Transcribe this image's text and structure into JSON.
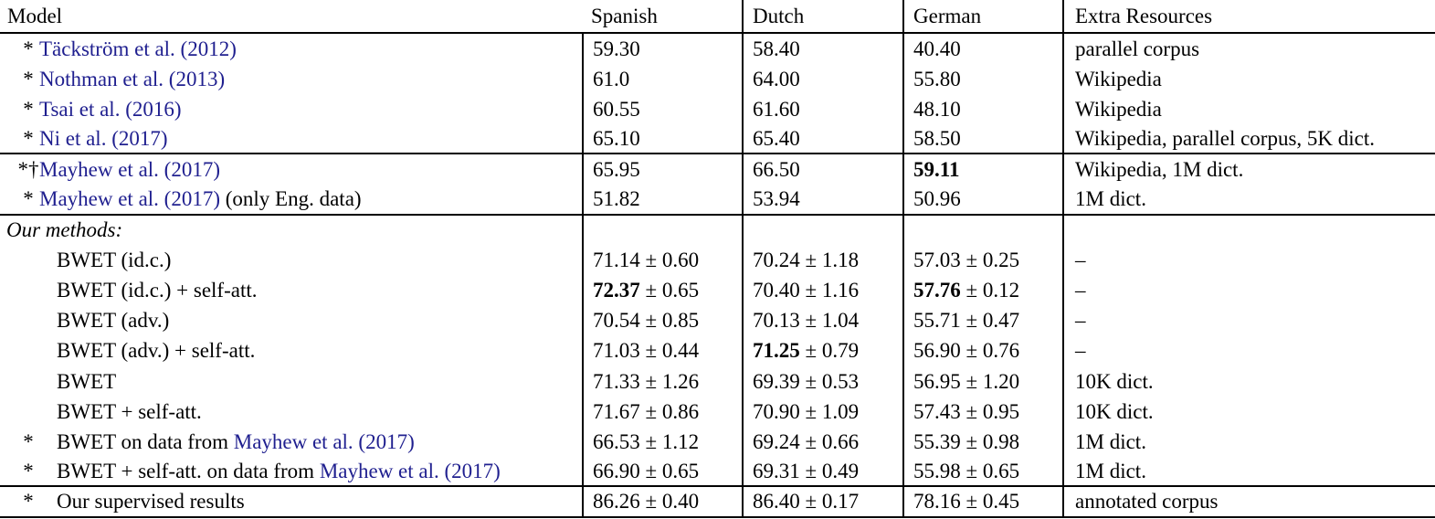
{
  "colors": {
    "citation": "#1f1f8f",
    "text": "#000000",
    "rule": "#000000"
  },
  "header": {
    "model": "Model",
    "spanish": "Spanish",
    "dutch": "Dutch",
    "german": "German",
    "extra": "Extra Resources"
  },
  "table": {
    "rows": [
      {
        "marker": "*",
        "indent": "cite",
        "name": [
          {
            "t": "Täckström et al. (2012)",
            "link": true
          }
        ],
        "scores": [
          {
            "v": "59.30"
          },
          {
            "v": "58.40"
          },
          {
            "v": "40.40"
          }
        ],
        "extra": "parallel corpus",
        "rule_below": false
      },
      {
        "marker": "*",
        "indent": "cite",
        "name": [
          {
            "t": "Nothman et al. (2013)",
            "link": true
          }
        ],
        "scores": [
          {
            "v": "61.0"
          },
          {
            "v": "64.00"
          },
          {
            "v": "55.80"
          }
        ],
        "extra": "Wikipedia",
        "rule_below": false
      },
      {
        "marker": "*",
        "indent": "cite",
        "name": [
          {
            "t": "Tsai et al. (2016)",
            "link": true
          }
        ],
        "scores": [
          {
            "v": "60.55"
          },
          {
            "v": "61.60"
          },
          {
            "v": "48.10"
          }
        ],
        "extra": "Wikipedia",
        "rule_below": false
      },
      {
        "marker": "*",
        "indent": "cite",
        "name": [
          {
            "t": "Ni et al. (2017)",
            "link": true
          }
        ],
        "scores": [
          {
            "v": "65.10"
          },
          {
            "v": "65.40"
          },
          {
            "v": "58.50"
          }
        ],
        "extra": "Wikipedia, parallel corpus, 5K dict.",
        "rule_below": true
      },
      {
        "marker": "*†",
        "indent": "cite",
        "name": [
          {
            "t": "Mayhew et al. (2017)",
            "link": true
          }
        ],
        "scores": [
          {
            "v": "65.95"
          },
          {
            "v": "66.50"
          },
          {
            "v": "59.11",
            "bold": true
          }
        ],
        "extra": "Wikipedia, 1M dict.",
        "rule_below": false
      },
      {
        "marker": "*",
        "indent": "cite",
        "name": [
          {
            "t": "Mayhew et al. (2017)",
            "link": true
          },
          {
            "t": " (only Eng. data)",
            "link": false
          }
        ],
        "scores": [
          {
            "v": "51.82"
          },
          {
            "v": "53.94"
          },
          {
            "v": "50.96"
          }
        ],
        "extra": "1M dict.",
        "rule_below": true
      },
      {
        "label": "Our methods:",
        "scores": [
          null,
          null,
          null
        ],
        "extra": "",
        "rule_below": false
      },
      {
        "marker": "",
        "indent": "method",
        "name": [
          {
            "t": "BWET (id.c.)",
            "link": false
          }
        ],
        "scores": [
          {
            "v": "71.14",
            "pm": "0.60"
          },
          {
            "v": "70.24",
            "pm": "1.18"
          },
          {
            "v": "57.03",
            "pm": "0.25"
          }
        ],
        "extra": "–",
        "rule_below": false
      },
      {
        "marker": "",
        "indent": "method",
        "name": [
          {
            "t": "BWET (id.c.) + self-att.",
            "link": false
          }
        ],
        "scores": [
          {
            "v": "72.37",
            "pm": "0.65",
            "bold": true
          },
          {
            "v": "70.40",
            "pm": "1.16"
          },
          {
            "v": "57.76",
            "pm": "0.12",
            "bold": true
          }
        ],
        "extra": "–",
        "rule_below": false
      },
      {
        "marker": "",
        "indent": "method",
        "name": [
          {
            "t": "BWET (adv.)",
            "link": false
          }
        ],
        "scores": [
          {
            "v": "70.54",
            "pm": "0.85"
          },
          {
            "v": "70.13",
            "pm": "1.04"
          },
          {
            "v": "55.71",
            "pm": "0.47"
          }
        ],
        "extra": "–",
        "rule_below": false
      },
      {
        "marker": "",
        "indent": "method",
        "name": [
          {
            "t": "BWET (adv.) + self-att.",
            "link": false
          }
        ],
        "scores": [
          {
            "v": "71.03",
            "pm": "0.44"
          },
          {
            "v": "71.25",
            "pm": "0.79",
            "bold": true
          },
          {
            "v": "56.90",
            "pm": "0.76"
          }
        ],
        "extra": "–",
        "rule_below": false
      },
      {
        "marker": "",
        "indent": "method",
        "name": [
          {
            "t": "BWET",
            "link": false
          }
        ],
        "scores": [
          {
            "v": "71.33",
            "pm": "1.26"
          },
          {
            "v": "69.39",
            "pm": "0.53"
          },
          {
            "v": "56.95",
            "pm": "1.20"
          }
        ],
        "extra": "10K dict.",
        "rule_below": false
      },
      {
        "marker": "",
        "indent": "method",
        "name": [
          {
            "t": "BWET + self-att.",
            "link": false
          }
        ],
        "scores": [
          {
            "v": "71.67",
            "pm": "0.86"
          },
          {
            "v": "70.90",
            "pm": "1.09"
          },
          {
            "v": "57.43",
            "pm": "0.95"
          }
        ],
        "extra": "10K dict.",
        "rule_below": false
      },
      {
        "marker": "*",
        "indent": "method",
        "name": [
          {
            "t": "BWET on data from ",
            "link": false
          },
          {
            "t": "Mayhew et al. (2017)",
            "link": true
          }
        ],
        "scores": [
          {
            "v": "66.53",
            "pm": "1.12"
          },
          {
            "v": "69.24",
            "pm": "0.66"
          },
          {
            "v": "55.39",
            "pm": "0.98"
          }
        ],
        "extra": "1M dict.",
        "rule_below": false
      },
      {
        "marker": "*",
        "indent": "method",
        "name": [
          {
            "t": "BWET + self-att. on data from ",
            "link": false
          },
          {
            "t": "Mayhew et al. (2017)",
            "link": true
          }
        ],
        "scores": [
          {
            "v": "66.90",
            "pm": "0.65"
          },
          {
            "v": "69.31",
            "pm": "0.49"
          },
          {
            "v": "55.98",
            "pm": "0.65"
          }
        ],
        "extra": "1M dict.",
        "rule_below": true
      },
      {
        "marker": "*",
        "indent": "method",
        "name": [
          {
            "t": "Our supervised results",
            "link": false
          }
        ],
        "scores": [
          {
            "v": "86.26",
            "pm": "0.40"
          },
          {
            "v": "86.40",
            "pm": "0.17"
          },
          {
            "v": "78.16",
            "pm": "0.45"
          }
        ],
        "extra": "annotated corpus",
        "rule_below": true
      }
    ]
  }
}
